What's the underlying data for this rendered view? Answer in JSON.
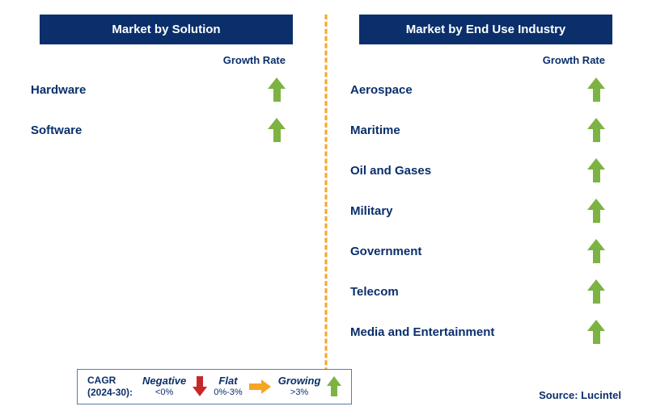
{
  "colors": {
    "primary": "#0a2f6b",
    "arrow_up": "#7cb342",
    "arrow_flat": "#f5a623",
    "arrow_down": "#c62828",
    "divider": "#f5a623",
    "background": "#ffffff",
    "legend_border": "#5b7aa8"
  },
  "typography": {
    "header_fontsize": 15,
    "item_fontsize": 15,
    "growth_label_fontsize": 13,
    "legend_main_fontsize": 12,
    "legend_cat_fontsize": 13,
    "legend_sub_fontsize": 11,
    "source_fontsize": 13
  },
  "left_panel": {
    "title": "Market by Solution",
    "growth_label": "Growth Rate",
    "items": [
      {
        "label": "Hardware",
        "direction": "up"
      },
      {
        "label": "Software",
        "direction": "up"
      }
    ]
  },
  "right_panel": {
    "title": "Market by End Use Industry",
    "growth_label": "Growth Rate",
    "items": [
      {
        "label": "Aerospace",
        "direction": "up"
      },
      {
        "label": "Maritime",
        "direction": "up"
      },
      {
        "label": "Oil and Gases",
        "direction": "up"
      },
      {
        "label": "Military",
        "direction": "up"
      },
      {
        "label": "Government",
        "direction": "up"
      },
      {
        "label": "Telecom",
        "direction": "up"
      },
      {
        "label": "Media and Entertainment",
        "direction": "up"
      }
    ]
  },
  "legend": {
    "cagr_line1": "CAGR",
    "cagr_line2": "(2024-30):",
    "negative": {
      "title": "Negative",
      "range": "<0%"
    },
    "flat": {
      "title": "Flat",
      "range": "0%-3%"
    },
    "growing": {
      "title": "Growing",
      "range": ">3%"
    }
  },
  "source": "Source: Lucintel"
}
